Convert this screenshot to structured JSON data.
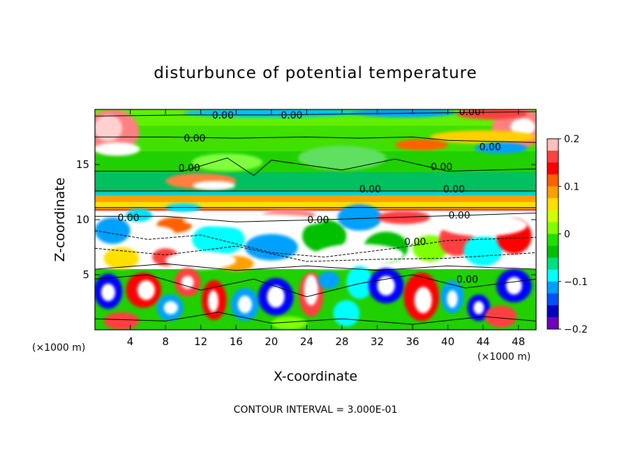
{
  "chart_data": {
    "type": "heatmap",
    "title": "disturbunce of potential temperature",
    "xlabel": "X-coordinate",
    "ylabel": "Z-coordinate",
    "x_unit_left": "(×1000 m)",
    "x_unit_right": "(×1000 m)",
    "footer": "CONTOUR INTERVAL = 3.000E-01",
    "xlim": [
      0,
      50
    ],
    "ylim": [
      0,
      20
    ],
    "x_ticks": [
      4,
      8,
      12,
      16,
      20,
      24,
      28,
      32,
      36,
      40,
      44,
      48
    ],
    "y_ticks": [
      5,
      10,
      15
    ],
    "colorbar": {
      "range": [
        -0.2,
        0.2
      ],
      "tick_values": [
        0.2,
        0.1,
        0,
        -0.1,
        -0.2
      ],
      "tick_labels": [
        "0.2",
        "0.1",
        "0",
        "−0.1",
        "−0.2"
      ],
      "colors": [
        "#ffc0c0",
        "#ff4040",
        "#ff0000",
        "#ff6000",
        "#ffa000",
        "#ffe000",
        "#d0ff00",
        "#80ff00",
        "#20e000",
        "#00c000",
        "#00e080",
        "#00ffff",
        "#00a0ff",
        "#0050ff",
        "#0000c0",
        "#7000c0"
      ]
    },
    "contour_labels": [
      {
        "text": "0.00",
        "x": 14.5,
        "z": 19.5
      },
      {
        "text": "0.00",
        "x": 22.3,
        "z": 19.5
      },
      {
        "text": "0.00",
        "x": 42.5,
        "z": 19.8
      },
      {
        "text": "0.00",
        "x": 11.3,
        "z": 17.4
      },
      {
        "text": "0.00",
        "x": 44.8,
        "z": 16.6
      },
      {
        "text": "0.00",
        "x": 10.7,
        "z": 14.7
      },
      {
        "text": "0.00",
        "x": 39.3,
        "z": 14.8
      },
      {
        "text": "0.00",
        "x": 31.2,
        "z": 12.8
      },
      {
        "text": "0.00",
        "x": 40.7,
        "z": 12.8
      },
      {
        "text": "0.00",
        "x": 3.8,
        "z": 10.2
      },
      {
        "text": "0.00",
        "x": 25.3,
        "z": 10.0
      },
      {
        "text": "0.00",
        "x": 41.3,
        "z": 10.4
      },
      {
        "text": "0.00",
        "x": 36.3,
        "z": 8.0
      },
      {
        "text": "0.00",
        "x": 42.2,
        "z": 4.6
      }
    ],
    "fields": {
      "upper_layer": {
        "z_range": [
          12.5,
          20
        ],
        "value": 0.0
      },
      "warm_band": {
        "z_range": [
          11.0,
          12.5
        ],
        "value": 0.08
      },
      "mid_band": {
        "z_range": [
          5.5,
          11
        ],
        "value_range": [
          -0.2,
          0.2
        ]
      },
      "lower_layer": {
        "z_range": [
          0,
          5.5
        ],
        "value_range": [
          -0.2,
          0.2
        ]
      }
    }
  }
}
